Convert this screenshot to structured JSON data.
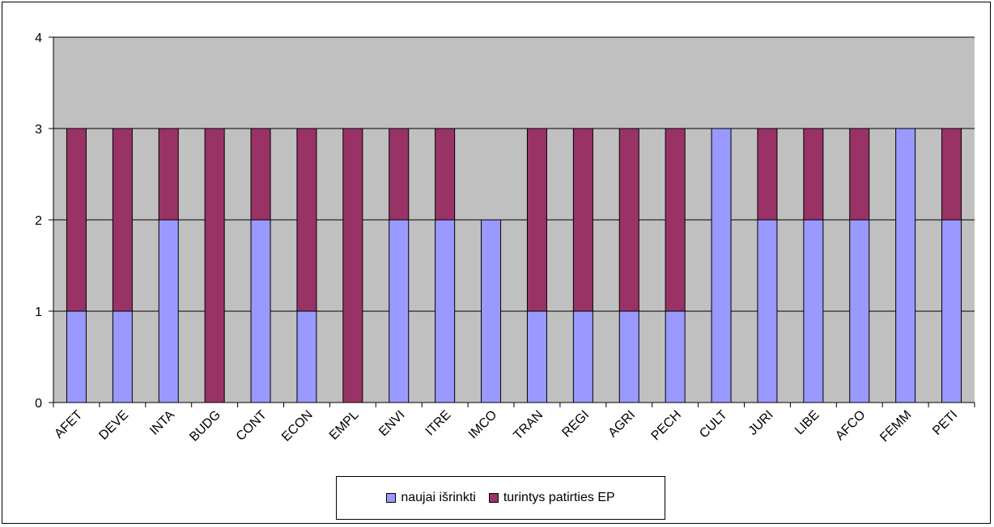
{
  "chart_data": {
    "type": "bar",
    "stacked": true,
    "categories": [
      "AFET",
      "DEVE",
      "INTA",
      "BUDG",
      "CONT",
      "ECON",
      "EMPL",
      "ENVI",
      "ITRE",
      "IMCO",
      "TRAN",
      "REGI",
      "AGRI",
      "PECH",
      "CULT",
      "JURI",
      "LIBE",
      "AFCO",
      "FEMM",
      "PETI"
    ],
    "series": [
      {
        "name": "naujai išrinkti",
        "color": "#9999ff",
        "values": [
          1,
          1,
          2,
          0,
          2,
          1,
          0,
          2,
          2,
          2,
          1,
          1,
          1,
          1,
          3,
          2,
          2,
          2,
          3,
          2
        ]
      },
      {
        "name": "turintys patirties EP",
        "color": "#993366",
        "values": [
          2,
          2,
          1,
          3,
          1,
          2,
          3,
          1,
          1,
          0,
          2,
          2,
          2,
          2,
          0,
          1,
          1,
          1,
          0,
          1
        ]
      }
    ],
    "yticks": [
      "0",
      "1",
      "2",
      "3",
      "4"
    ],
    "ylim": [
      0,
      4
    ],
    "plot_background": "#c0c0c0",
    "grid": "horizontal major",
    "legend_position": "bottom"
  }
}
